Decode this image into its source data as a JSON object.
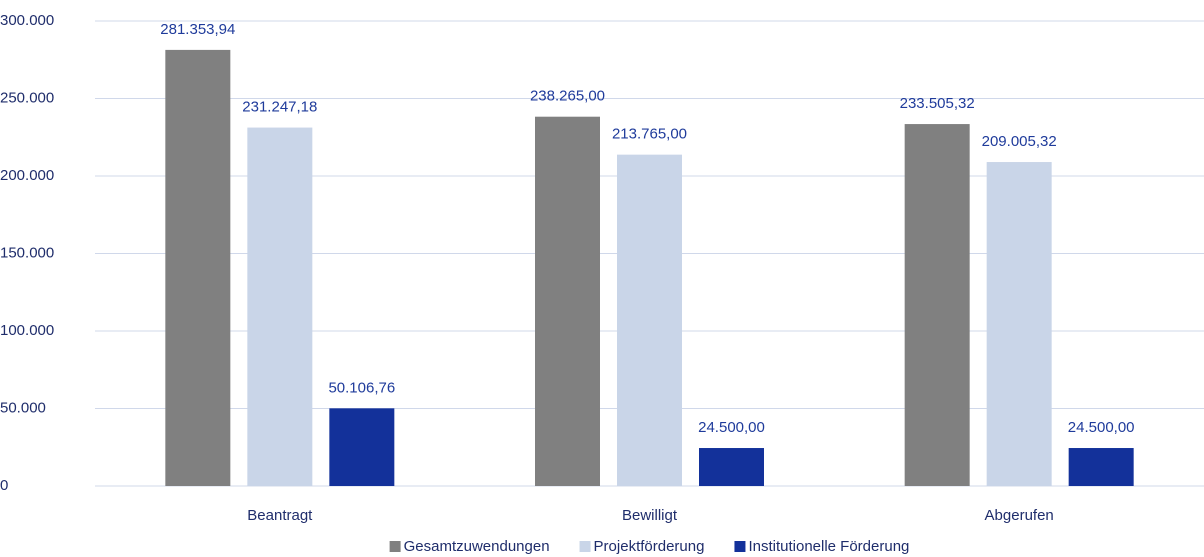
{
  "chart_data": {
    "type": "bar",
    "categories": [
      "Beantragt",
      "Bewilligt",
      "Abgerufen"
    ],
    "series": [
      {
        "name": "Gesamtzuwendungen",
        "color": "#808080",
        "values": [
          281353.94,
          238265.0,
          233505.32
        ],
        "value_labels": [
          "281.353,94",
          "238.265,00",
          "233.505,32"
        ]
      },
      {
        "name": "Projektförderung",
        "color": "#c9d5e8",
        "values": [
          231247.18,
          213765.0,
          209005.32
        ],
        "value_labels": [
          "231.247,18",
          "213.765,00",
          "209.005,32"
        ]
      },
      {
        "name": "Institutionelle Förderung",
        "color": "#13319a",
        "values": [
          50106.76,
          24500.0,
          24500.0
        ],
        "value_labels": [
          "50.106,76",
          "24.500,00",
          "24.500,00"
        ]
      }
    ],
    "ylim": [
      0,
      300000
    ],
    "yticks": [
      0,
      {
        "value": 50000,
        "label": "50.000"
      },
      {
        "value": 100000,
        "label": "100.000"
      },
      {
        "value": 150000,
        "label": "150.000"
      },
      {
        "value": 200000,
        "label": "200.000"
      },
      {
        "value": 250000,
        "label": "250.000"
      },
      {
        "value": 300000,
        "label": "300.000"
      }
    ],
    "grid": true,
    "legend": "bottom"
  }
}
